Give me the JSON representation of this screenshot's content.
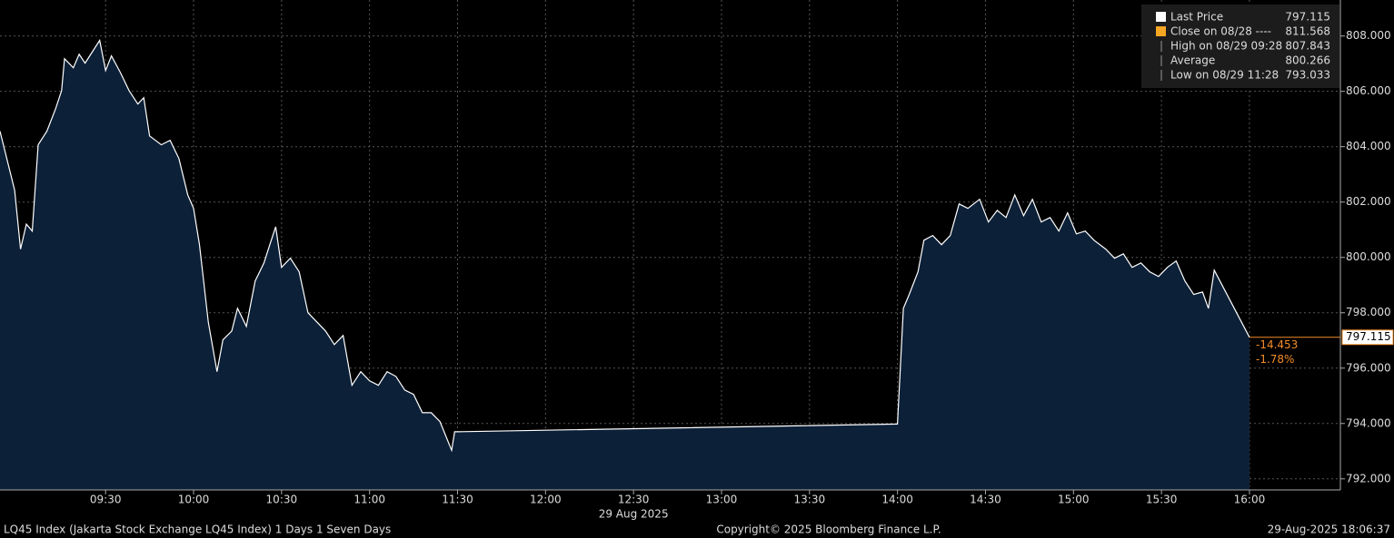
{
  "chart_data": {
    "type": "area",
    "series": [
      {
        "name": "Last Price",
        "color": "#ffffff",
        "values": [
          804.56,
          802.43,
          800.3,
          801.2,
          800.95,
          804.07,
          804.56,
          805.38,
          806.03,
          807.18,
          806.85,
          807.34,
          807.02,
          807.843,
          806.75,
          807.28,
          806.69,
          806.03,
          805.54,
          805.77,
          804.39,
          804.07,
          804.23,
          803.57,
          802.26,
          801.77,
          800.46,
          797.67,
          795.87,
          797.02,
          797.34,
          798.16,
          797.51,
          799.15,
          799.8,
          800.46,
          801.11,
          799.64,
          799.97,
          799.48,
          798.0,
          797.67,
          797.34,
          796.85,
          797.18,
          795.38,
          795.87,
          795.54,
          795.38,
          795.87,
          795.7,
          795.21,
          795.05,
          794.39,
          794.39,
          794.07,
          793.033,
          793.7,
          793.7,
          793.98,
          798.16,
          798.66,
          799.48,
          800.62,
          800.79,
          800.46,
          800.79,
          801.93,
          801.77,
          802.1,
          801.28,
          801.7,
          801.44,
          802.26,
          801.51,
          802.1,
          801.28,
          801.44,
          800.95,
          801.61,
          800.85,
          800.95,
          800.62,
          800.3,
          799.97,
          800.13,
          799.64,
          799.8,
          799.48,
          799.31,
          799.64,
          799.87,
          799.15,
          798.66,
          798.75,
          798.16,
          799.54,
          797.115
        ]
      }
    ],
    "x": [
      "08:54",
      "08:59",
      "09:01",
      "09:03",
      "09:05",
      "09:07",
      "09:10",
      "09:13",
      "09:15",
      "09:16",
      "09:19",
      "09:21",
      "09:23",
      "09:28",
      "09:30",
      "09:32",
      "09:35",
      "09:38",
      "09:41",
      "09:43",
      "09:45",
      "09:49",
      "09:52",
      "09:55",
      "09:58",
      "10:00",
      "10:02",
      "10:05",
      "10:08",
      "10:10",
      "10:13",
      "10:15",
      "10:18",
      "10:21",
      "10:24",
      "10:26",
      "10:28",
      "10:30",
      "10:33",
      "10:36",
      "10:39",
      "10:42",
      "10:45",
      "10:48",
      "10:51",
      "10:54",
      "10:57",
      "11:00",
      "11:03",
      "11:06",
      "11:09",
      "11:12",
      "11:15",
      "11:18",
      "11:21",
      "11:24",
      "11:28",
      "11:29",
      "11:30",
      "14:00",
      "14:02",
      "14:04",
      "14:07",
      "14:09",
      "14:12",
      "14:15",
      "14:18",
      "14:21",
      "14:24",
      "14:28",
      "14:31",
      "14:34",
      "14:37",
      "14:40",
      "14:43",
      "14:46",
      "14:49",
      "14:52",
      "14:55",
      "14:58",
      "15:01",
      "15:04",
      "15:07",
      "15:11",
      "15:14",
      "15:17",
      "15:20",
      "15:23",
      "15:26",
      "15:29",
      "15:32",
      "15:35",
      "15:38",
      "15:41",
      "15:44",
      "15:46",
      "15:48",
      "16:00"
    ],
    "xlim": [
      "08:54",
      "16:31"
    ],
    "xticks": [
      "09:30",
      "10:00",
      "10:30",
      "11:00",
      "11:30",
      "12:00",
      "12:30",
      "13:00",
      "13:30",
      "14:00",
      "14:30",
      "15:00",
      "15:30",
      "16:00"
    ],
    "x_date_label": "29 Aug 2025",
    "ylim": [
      791.6,
      809.3
    ],
    "yticks": [
      {
        "value": 792,
        "label": "792.000"
      },
      {
        "value": 794,
        "label": "794.000"
      },
      {
        "value": 796,
        "label": "796.000"
      },
      {
        "value": 798,
        "label": "798.000"
      },
      {
        "value": 800,
        "label": "800.000"
      },
      {
        "value": 802,
        "label": "802.000"
      },
      {
        "value": 804,
        "label": "804.000"
      },
      {
        "value": 806,
        "label": "806.000"
      },
      {
        "value": 808,
        "label": "808.000"
      }
    ],
    "grid": true,
    "fill_color": "#0c2038",
    "last_price": {
      "value": 797.115,
      "change": -14.453,
      "change_pct": {
        "value": -1.78,
        "label": "-1.78%"
      },
      "color": "#f28c28"
    },
    "legend": [
      {
        "name": "Last Price",
        "value": 797.115,
        "color": "#ffffff"
      },
      {
        "name": "Close on 08/28 ----",
        "value": 811.568,
        "color": "#f5a623"
      },
      {
        "name": "High on 08/29 09:28",
        "value": 807.843
      },
      {
        "name": "Average",
        "value": 800.266
      },
      {
        "name": "Low on 08/29 11:28",
        "value": 793.033
      }
    ],
    "footer": {
      "left": "LQ45 Index (Jakarta Stock Exchange LQ45 Index) 1 Days 1 Seven Days",
      "center": "Copyright© 2025 Bloomberg Finance L.P.",
      "right": "29-Aug-2025 18:06:37"
    }
  }
}
